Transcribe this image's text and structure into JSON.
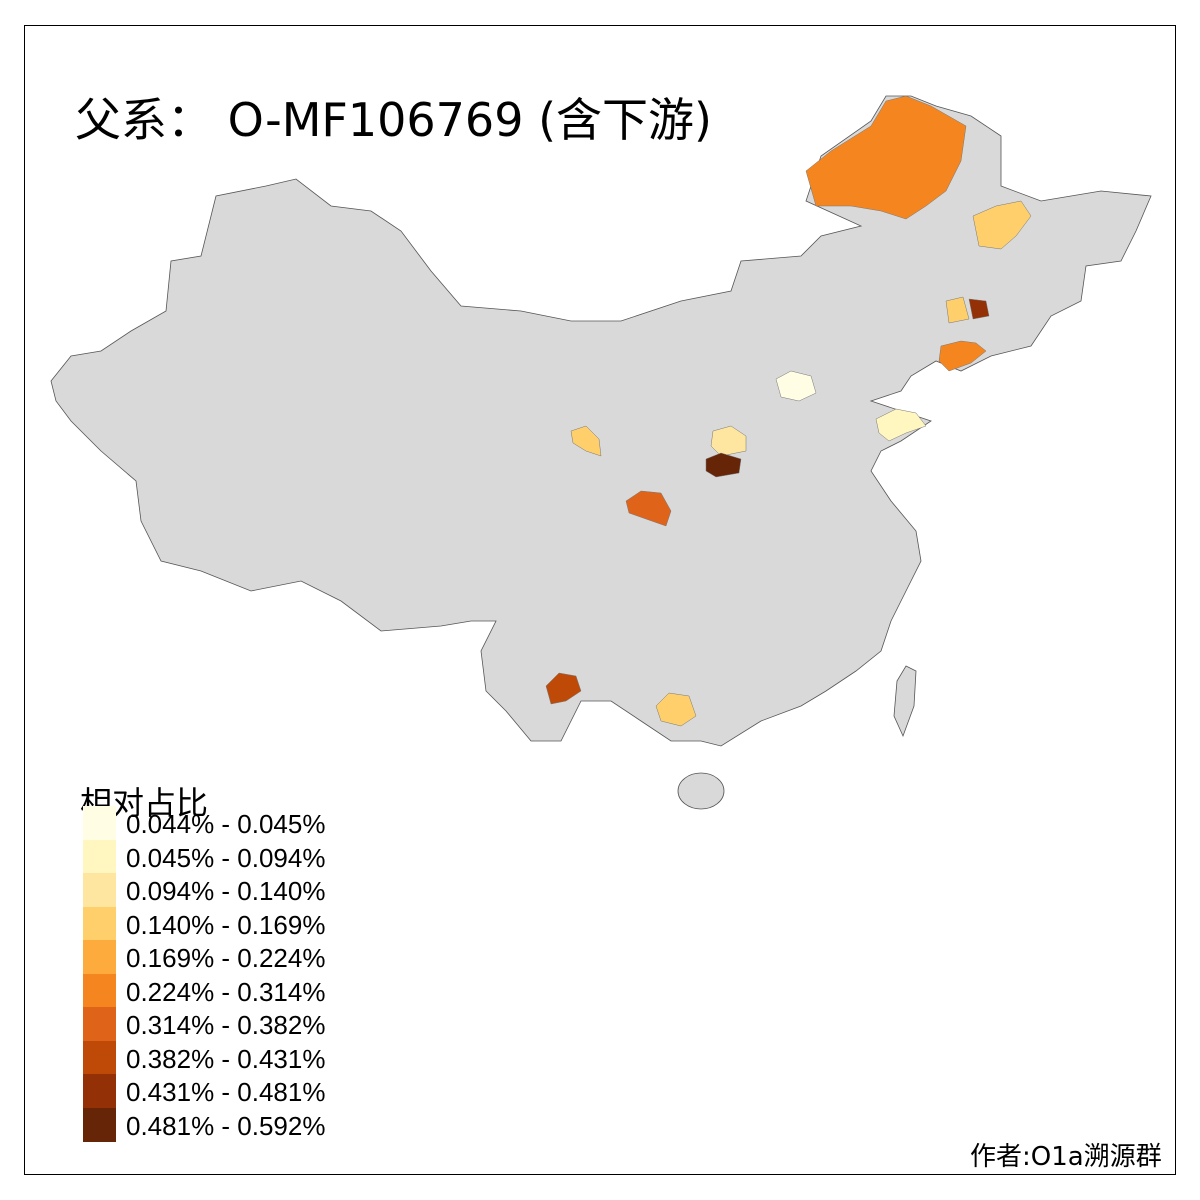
{
  "title": "父系： O-MF106769 (含下游)",
  "legend": {
    "title": "相对占比",
    "bins": [
      {
        "label": "0.044% - 0.045%",
        "color": "#FFFDE4"
      },
      {
        "label": "0.045% - 0.094%",
        "color": "#FFF6C0"
      },
      {
        "label": "0.094% - 0.140%",
        "color": "#FEE6A0"
      },
      {
        "label": "0.140% - 0.169%",
        "color": "#FECF6A"
      },
      {
        "label": "0.169% - 0.224%",
        "color": "#FDAB3D"
      },
      {
        "label": "0.224% - 0.314%",
        "color": "#F5861F"
      },
      {
        "label": "0.314% - 0.382%",
        "color": "#E0631A"
      },
      {
        "label": "0.382% - 0.431%",
        "color": "#BF4A08"
      },
      {
        "label": "0.431% - 0.481%",
        "color": "#943005"
      },
      {
        "label": "0.481% - 0.592%",
        "color": "#662506"
      }
    ]
  },
  "map": {
    "base_color": "#D9D9D9",
    "highlighted_regions_bin": [
      5,
      3,
      3,
      8,
      5,
      0,
      1,
      2,
      9,
      3,
      6,
      7,
      3
    ]
  },
  "author": "作者:O1a溯源群"
}
